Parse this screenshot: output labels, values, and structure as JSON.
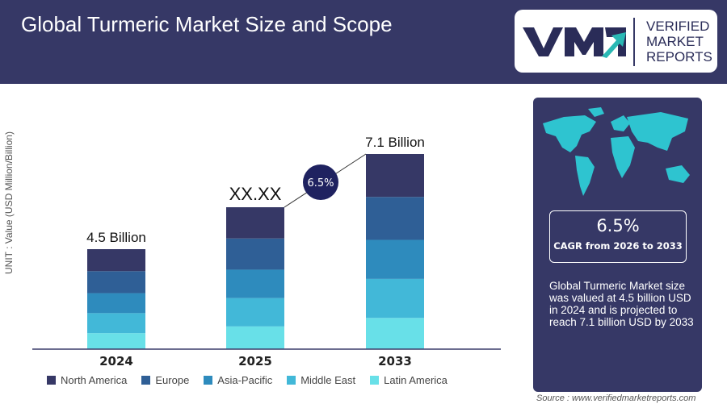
{
  "header": {
    "title": "Global Turmeric Market Size and Scope"
  },
  "logo": {
    "line1": "VERIFIED",
    "line2": "MARKET",
    "line3": "REPORTS",
    "mark": "VMR"
  },
  "chart_data": {
    "type": "bar",
    "stacked": true,
    "ylabel": "UNIT : Value (USD Million/Billion)",
    "categories": [
      "2024",
      "2025",
      "2033"
    ],
    "totals": [
      4.5,
      null,
      7.1
    ],
    "data_labels": [
      "4.5 Billion",
      "XX.XX",
      "7.1 Billion"
    ],
    "cagr_bubble": "6.5%",
    "series": [
      {
        "name": "North America",
        "color": "#363866"
      },
      {
        "name": "Europe",
        "color": "#2f5f96"
      },
      {
        "name": "Asia-Pacific",
        "color": "#2e8bbd"
      },
      {
        "name": "Middle East",
        "color": "#42b8d8"
      },
      {
        "name": "Latin America",
        "color": "#68e0e8"
      }
    ],
    "legend_position": "bottom"
  },
  "panel": {
    "map_icon": "world-map-icon",
    "cagr_value": "6.5%",
    "cagr_label": "CAGR from 2026 to 2033",
    "description": "Global Turmeric Market size was valued at 4.5 billion USD in 2024 and is projected to reach 7.1 billion USD by 2033"
  },
  "source": "Source : www.verifiedmarketreports.com"
}
